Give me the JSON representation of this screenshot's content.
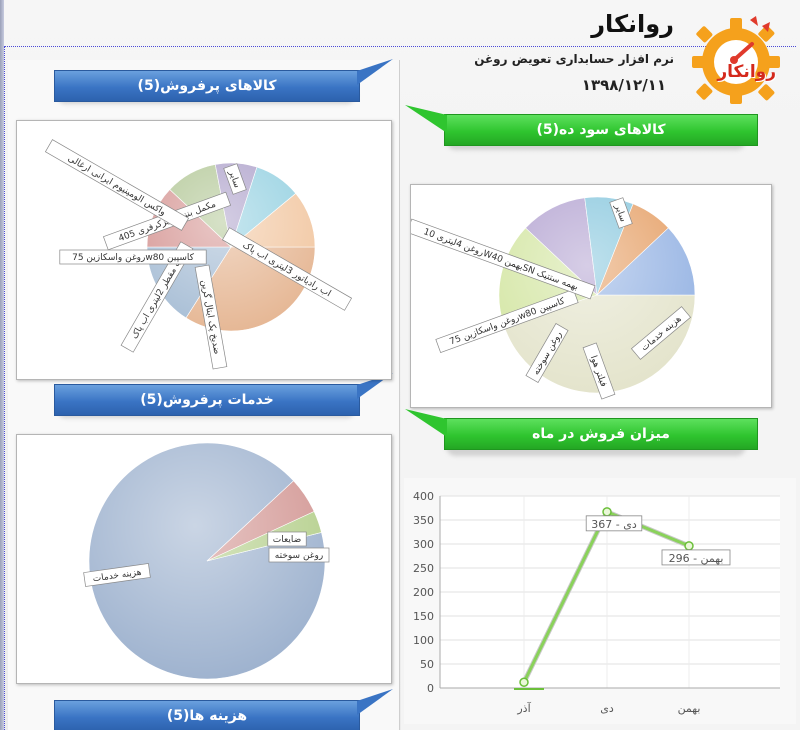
{
  "header": {
    "title": "روانکار",
    "subtitle": "نرم افزار حسابداری تعویض روغن",
    "date": "۱۳۹۸/۱۲/۱۱",
    "logo_text": "روانکار",
    "logo_icon": "gear-gauge-icon"
  },
  "colors": {
    "blue_banner": "#3a74c4",
    "green_banner": "#2fc52f",
    "logo_orange": "#f5a11c",
    "logo_red": "#e03a2c"
  },
  "banners": {
    "best_selling_goods": "کالاهای پرفروش(5)",
    "profitable_goods": "کالاهای سود ده(5)",
    "best_selling_services": "خدمات پرفروش(5)",
    "monthly_sales": "میزان فروش در ماه",
    "expenses": "هزینه ها(5)"
  },
  "chart_data": [
    {
      "type": "pie",
      "title": "",
      "slices": [
        {
          "label": "سایر",
          "value": 34,
          "color": "#e6b896"
        },
        {
          "label": "اب رادیاتور 3لیتری اب پاک",
          "value": 16,
          "color": "#a9bfd6"
        },
        {
          "label": "ضدیخ پک ایتال گرین",
          "value": 12,
          "color": "#d79a98"
        },
        {
          "label": "اب مقطر 2لیتری اب پاک",
          "value": 10,
          "color": "#b5c99a"
        },
        {
          "label": "کاسپین w80روغن واسکازین 75",
          "value": 8,
          "color": "#b0a4cc"
        },
        {
          "label": "مکمل بنزین ابزکرفری 405",
          "value": 9,
          "color": "#98d2e2"
        },
        {
          "label": "واکس الومینیوم ایرانی ارغالی",
          "value": 11,
          "color": "#f2c9a5"
        }
      ]
    },
    {
      "type": "pie",
      "title": "",
      "slices": [
        {
          "label": "سایر",
          "value": 45,
          "color": "#e4e4cc"
        },
        {
          "label": "هزینه خدمات",
          "value": 17,
          "color": "#d4e6a4"
        },
        {
          "label": "فیلتر هوا",
          "value": 11,
          "color": "#b5a5d2"
        },
        {
          "label": "روغن سوخته",
          "value": 8,
          "color": "#8ac8de"
        },
        {
          "label": "کاسپین w80روغن واسکازین 75",
          "value": 7,
          "color": "#e6a26a"
        },
        {
          "label": "بهمه ستتیک SNبهمن W40روغن 4لیتری 10",
          "value": 12,
          "color": "#98b5e4"
        }
      ]
    },
    {
      "type": "pie",
      "title": "",
      "slices": [
        {
          "label": "هزینه خدمات",
          "value": 92,
          "color": "#9fb3cf"
        },
        {
          "label": "ضایعات",
          "value": 5,
          "color": "#d39895"
        },
        {
          "label": "روغن سوخته",
          "value": 3,
          "color": "#b6d08e"
        }
      ]
    },
    {
      "type": "line",
      "title": "",
      "xlabel": "",
      "ylabel": "",
      "categories": [
        "آذر",
        "دی",
        "بهمن"
      ],
      "series": [
        {
          "values": [
            12,
            367,
            296
          ]
        }
      ],
      "data_labels": [
        "",
        "دی - 367",
        "بهمن - 296"
      ],
      "ylim": [
        0,
        400
      ],
      "yticks": [
        0,
        50,
        100,
        150,
        200,
        250,
        300,
        350,
        400
      ],
      "grid": true,
      "color": "#8ad25a"
    }
  ]
}
